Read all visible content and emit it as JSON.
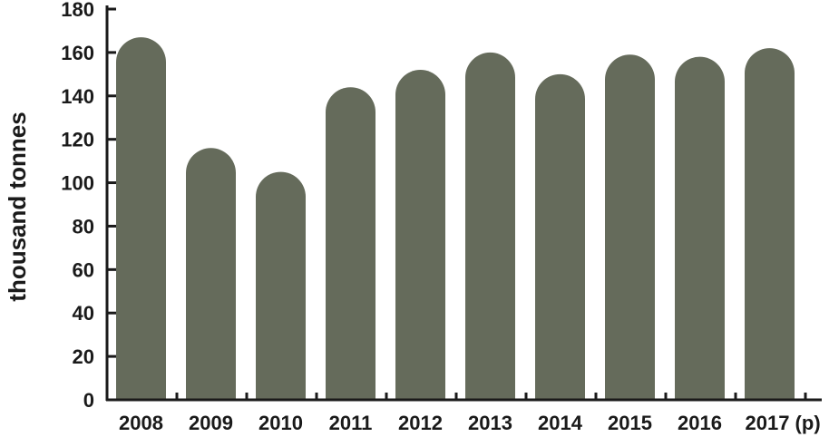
{
  "chart_data": {
    "type": "bar",
    "title": "",
    "xlabel": "",
    "ylabel": "thousand tonnes",
    "categories": [
      "2008",
      "2009",
      "2010",
      "2011",
      "2012",
      "2013",
      "2014",
      "2015",
      "2016",
      "2017 (p)"
    ],
    "values": [
      167,
      116,
      105,
      144,
      152,
      160,
      150,
      159,
      158,
      162
    ],
    "ylim": [
      0,
      180
    ],
    "yticks": [
      0,
      20,
      40,
      60,
      80,
      100,
      120,
      140,
      160,
      180
    ],
    "grid": false,
    "legend": "none",
    "bar_color": "#656b5b",
    "bar_shape": "rounded-top"
  }
}
